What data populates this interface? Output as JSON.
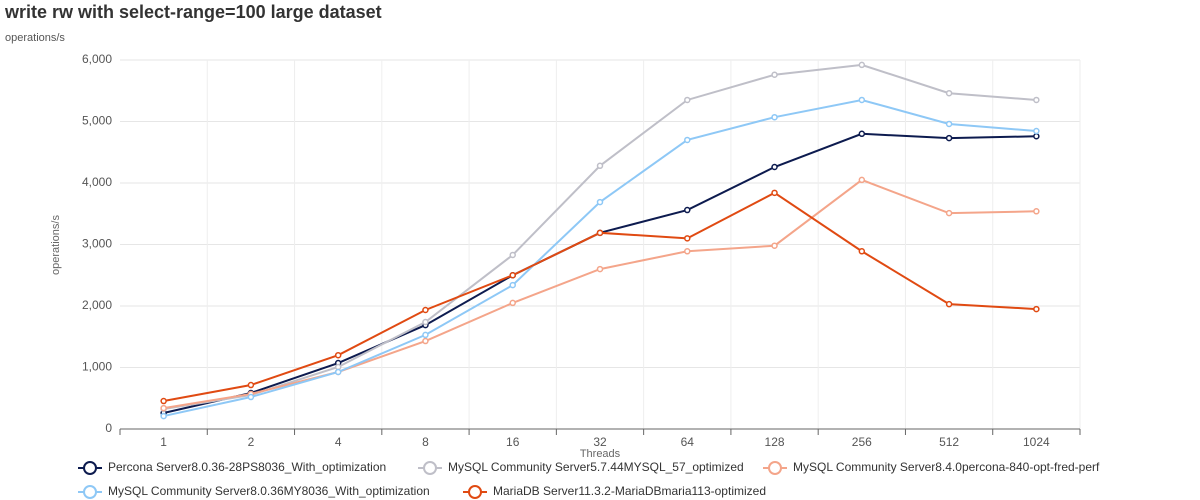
{
  "chart_data": {
    "type": "line",
    "title": "write rw with select-range=100 large dataset",
    "subtitle": "operations/s",
    "y_label": "operations/s",
    "x_label": "Threads",
    "categories": [
      "1",
      "2",
      "4",
      "8",
      "16",
      "32",
      "64",
      "128",
      "256",
      "512",
      "1024"
    ],
    "ylim": [
      0,
      6000
    ],
    "yticks": [
      0,
      {
        "value": 1000,
        "label": "1,000"
      },
      {
        "value": 2000,
        "label": "2,000"
      },
      {
        "value": 3000,
        "label": "3,000"
      },
      {
        "value": 4000,
        "label": "4,000"
      },
      {
        "value": 5000,
        "label": "5,000"
      },
      {
        "value": 6000,
        "label": "6,000"
      }
    ],
    "grid": true,
    "legend": "bottom",
    "series": [
      {
        "name": "Percona Server8.0.36-28PS8036_With_optimization",
        "color": "#0d1b4f",
        "values": [
          260,
          585,
          1073,
          1690,
          2500,
          3190,
          3560,
          4260,
          4800,
          4730,
          4760
        ]
      },
      {
        "name": "MySQL Community Server5.7.44MYSQL_57_optimized",
        "color": "#bfbfc8",
        "values": [
          325,
          553,
          1008,
          1740,
          2830,
          4280,
          5350,
          5760,
          5920,
          5460,
          5350
        ]
      },
      {
        "name": "MySQL Community Server8.4.0percona-840-opt-fred-perf",
        "color": "#f4a58a",
        "values": [
          340,
          570,
          927,
          1430,
          2050,
          2600,
          2890,
          2980,
          4050,
          3510,
          3540
        ]
      },
      {
        "name": "MySQL Community Server8.0.36MY8036_With_optimization",
        "color": "#8ec8f6",
        "values": [
          210,
          520,
          927,
          1530,
          2340,
          3690,
          4700,
          5070,
          5350,
          4960,
          4845
        ]
      },
      {
        "name": "MariaDB Server11.3.2-MariaDBmaria113-optimized",
        "color": "#e04a12",
        "values": [
          455,
          715,
          1200,
          1935,
          2500,
          3190,
          3100,
          3840,
          2890,
          2030,
          1950
        ]
      }
    ]
  }
}
